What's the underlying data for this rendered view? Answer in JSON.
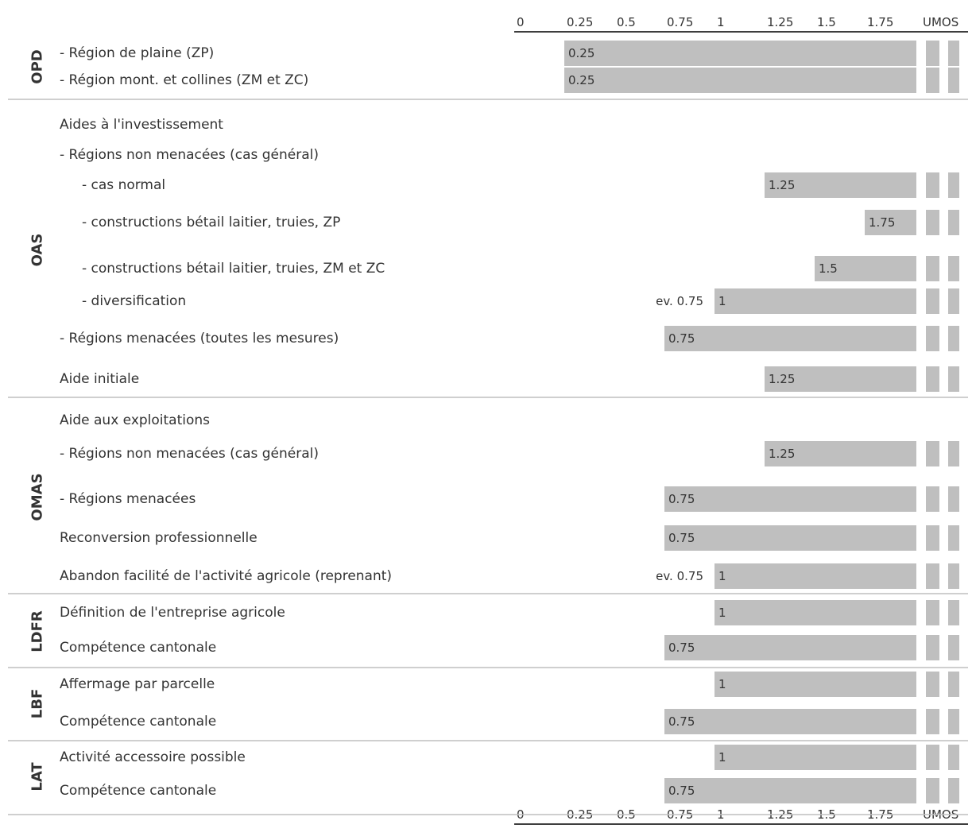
{
  "chart_data": {
    "type": "bar",
    "orientation": "horizontal",
    "x_ticks": [
      "0",
      "0.25",
      "0.5",
      "0.75",
      "1",
      "1.25",
      "1.5",
      "1.75",
      "UMOS"
    ],
    "x_tick_values": [
      0,
      0.25,
      0.5,
      0.75,
      1,
      1.25,
      1.5,
      1.75
    ],
    "unit": "UMOS",
    "xlim": [
      0,
      2
    ],
    "axis_position": "top and bottom",
    "bar_color": "#bfbfbf",
    "text_color": "#333333",
    "groups": [
      {
        "name": "OPD",
        "rows": [
          {
            "label": "- Région de plaine (ZP)",
            "indent": 0,
            "value": 0.25,
            "value_label": "0.25"
          },
          {
            "label": "- Région mont. et collines (ZM et ZC)",
            "indent": 0,
            "value": 0.25,
            "value_label": "0.25"
          }
        ]
      },
      {
        "name": "OAS",
        "rows": [
          {
            "label": "Aides à l'investissement",
            "indent": 0,
            "value": null
          },
          {
            "label": "- Régions non menacées (cas général)",
            "indent": 0,
            "value": null
          },
          {
            "label": "- cas normal",
            "indent": 1,
            "value": 1.25,
            "value_label": "1.25"
          },
          {
            "label": "- constructions bétail laitier, truies, ZP",
            "indent": 1,
            "value": 1.75,
            "value_label": "1.75"
          },
          {
            "label": "- constructions bétail laitier, truies, ZM et ZC",
            "indent": 1,
            "value": 1.5,
            "value_label": "1.5"
          },
          {
            "label": "- diversification",
            "indent": 1,
            "value": 1,
            "value_label": "1",
            "note": "ev. 0.75"
          },
          {
            "label": "- Régions menacées (toutes les mesures)",
            "indent": 0,
            "value": 0.75,
            "value_label": "0.75"
          },
          {
            "label": "Aide initiale",
            "indent": 0,
            "value": 1.25,
            "value_label": "1.25"
          }
        ]
      },
      {
        "name": "OMAS",
        "rows": [
          {
            "label": "Aide aux exploitations",
            "indent": 0,
            "value": null
          },
          {
            "label": "- Régions non menacées (cas général)",
            "indent": 0,
            "value": 1.25,
            "value_label": "1.25"
          },
          {
            "label": "- Régions menacées",
            "indent": 0,
            "value": 0.75,
            "value_label": "0.75"
          },
          {
            "label": "Reconversion professionnelle",
            "indent": 0,
            "value": 0.75,
            "value_label": "0.75"
          },
          {
            "label": "Abandon facilité de l'activité agricole (reprenant)",
            "indent": 0,
            "value": 1,
            "value_label": "1",
            "note": "ev. 0.75"
          }
        ]
      },
      {
        "name": "LDFR",
        "rows": [
          {
            "label": "Définition de l'entreprise agricole",
            "indent": 0,
            "value": 1,
            "value_label": "1"
          },
          {
            "label": "Compétence cantonale",
            "indent": 0,
            "value": 0.75,
            "value_label": "0.75"
          }
        ]
      },
      {
        "name": "LBF",
        "rows": [
          {
            "label": "Affermage par parcelle",
            "indent": 0,
            "value": 1,
            "value_label": "1"
          },
          {
            "label": "Compétence cantonale",
            "indent": 0,
            "value": 0.75,
            "value_label": "0.75"
          }
        ]
      },
      {
        "name": "LAT",
        "rows": [
          {
            "label": "Activité accessoire possible",
            "indent": 0,
            "value": 1,
            "value_label": "1"
          },
          {
            "label": "Compétence cantonale",
            "indent": 0,
            "value": 0.75,
            "value_label": "0.75"
          }
        ]
      }
    ]
  }
}
